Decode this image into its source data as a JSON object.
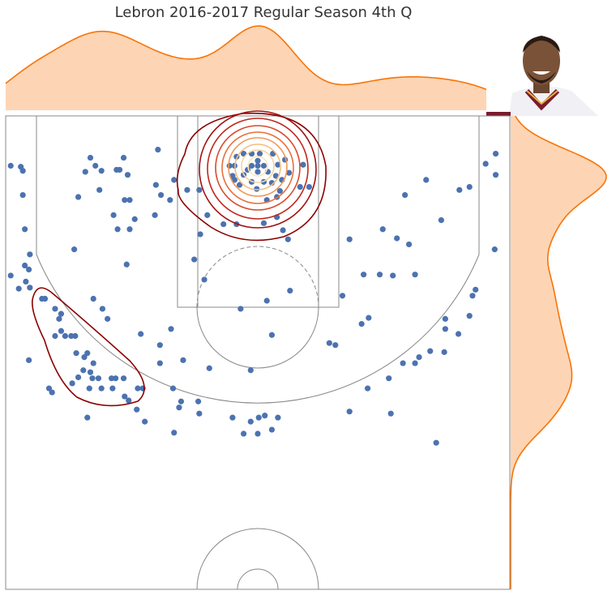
{
  "chart_data": {
    "type": "scatter",
    "title": "Lebron 2016-2017 Regular Season 4th Q",
    "x": [
      -245,
      -235,
      -233,
      -233,
      -231,
      -226,
      -231,
      -227,
      -245,
      -230,
      -226,
      -237,
      -227,
      -166,
      -171,
      -161,
      -155,
      -140,
      -137,
      -133,
      -129,
      -157,
      -178,
      -132,
      -127,
      -99,
      -101,
      -96,
      -87,
      -83,
      -143,
      -122,
      -102,
      -139,
      -127,
      -182,
      -130,
      -70,
      -58,
      -57,
      -63,
      -53,
      -50,
      -34,
      -21,
      6,
      19,
      25,
      30,
      9,
      19,
      22,
      42,
      51,
      45,
      31,
      27,
      -17,
      9,
      32,
      14,
      -7,
      -48,
      -74,
      -97,
      -97,
      -86,
      -116,
      91,
      124,
      138,
      150,
      105,
      121,
      134,
      156,
      84,
      110,
      103,
      71,
      77,
      146,
      167,
      182,
      200,
      210,
      226,
      236,
      236,
      235,
      216,
      213,
      210,
      199,
      186,
      186,
      185,
      171,
      160,
      156,
      144,
      130,
      109,
      132,
      91,
      177,
      -214,
      -211,
      -201,
      -195,
      -197,
      -163,
      -154,
      -149,
      -195,
      -201,
      -191,
      -185,
      -181,
      -180,
      -172,
      -169,
      -163,
      -173,
      -166,
      -178,
      -164,
      -158,
      -145,
      -141,
      -133,
      -184,
      -167,
      -155,
      -144,
      -207,
      -204,
      -132,
      -128,
      -119,
      -114,
      -84,
      -76,
      -78,
      -59,
      -58,
      -120,
      -112,
      -169,
      -83,
      -25,
      -14,
      -7,
      1,
      7,
      0,
      14,
      20,
      0,
      -6,
      6,
      0,
      0,
      -14,
      -6,
      2,
      15,
      -23,
      -25,
      -14,
      -6,
      6,
      18,
      20,
      -21,
      -28,
      -18,
      -1,
      14,
      24,
      -23,
      -10,
      10
    ],
    "y": [
      2,
      3,
      7,
      31,
      65,
      90,
      101,
      105,
      111,
      117,
      123,
      124,
      195,
      -6,
      8,
      2,
      7,
      6,
      6,
      -6,
      11,
      26,
      33,
      36,
      36,
      -14,
      21,
      31,
      36,
      16,
      51,
      55,
      51,
      65,
      65,
      85,
      100,
      26,
      26,
      70,
      95,
      115,
      51,
      60,
      60,
      59,
      53,
      66,
      75,
      36,
      33,
      27,
      23,
      23,
      1,
      9,
      -4,
      144,
      136,
      126,
      170,
      205,
      203,
      195,
      198,
      180,
      164,
      169,
      75,
      65,
      74,
      80,
      110,
      110,
      111,
      110,
      131,
      153,
      159,
      178,
      180,
      31,
      16,
      56,
      26,
      23,
      0,
      -10,
      11,
      85,
      125,
      131,
      151,
      169,
      154,
      164,
      187,
      186,
      192,
      198,
      198,
      213,
      223,
      248,
      246,
      277,
      134,
      134,
      144,
      149,
      154,
      134,
      144,
      154,
      166,
      171,
      171,
      171,
      171,
      188,
      192,
      188,
      198,
      205,
      207,
      212,
      213,
      213,
      213,
      213,
      213,
      218,
      223,
      223,
      223,
      223,
      227,
      231,
      235,
      223,
      223,
      223,
      236,
      242,
      236,
      248,
      244,
      256,
      252,
      267,
      252,
      268,
      256,
      252,
      250,
      268,
      264,
      252,
      2,
      2,
      2,
      -3,
      8,
      -10,
      -10,
      -10,
      -10,
      2,
      12,
      11,
      18,
      18,
      12,
      1,
      -7,
      2,
      21,
      25,
      19,
      16,
      16,
      6,
      8
    ],
    "color": "#4c72b0",
    "marginal_color": "#f97306",
    "xlim": [
      -250,
      250
    ],
    "ylim": [
      -47.5,
      422.5
    ]
  }
}
